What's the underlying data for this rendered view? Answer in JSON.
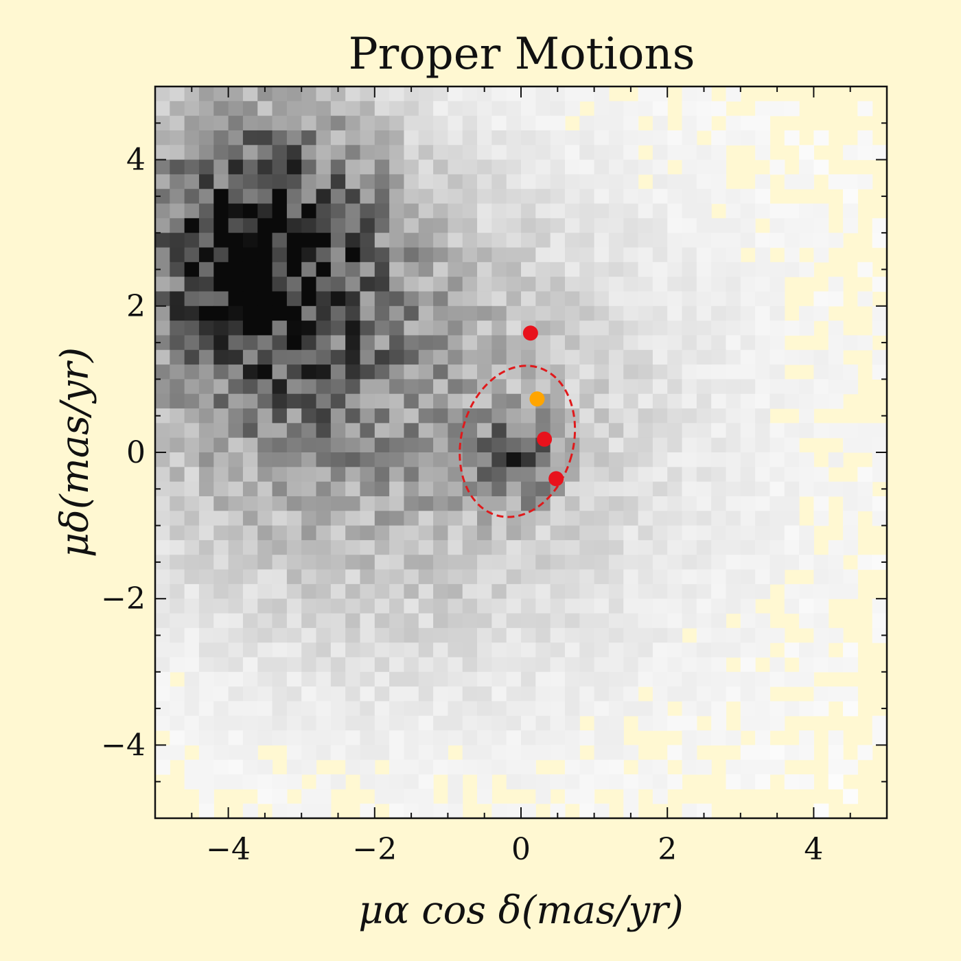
{
  "chart_data": {
    "type": "heatmap",
    "title": "Proper Motions",
    "xlabel": "μα cos δ(mas/yr)",
    "ylabel": "μδ(mas/yr)",
    "xlim": [
      -5,
      5
    ],
    "ylim": [
      -5,
      5
    ],
    "x_ticks": [
      -4,
      -2,
      0,
      2,
      4
    ],
    "y_ticks": [
      -4,
      -2,
      0,
      2,
      4
    ],
    "x_tick_labels": [
      "−4",
      "−2",
      "0",
      "2",
      "4"
    ],
    "y_tick_labels": [
      "−4",
      "−2",
      "0",
      "2",
      "4"
    ],
    "grid": false,
    "colormap": "greys",
    "bins": [
      50,
      50
    ],
    "density_components": [
      {
        "center": [
          -3.6,
          2.8
        ],
        "sigma": [
          1.2,
          1.4
        ],
        "weight": 0.85
      },
      {
        "center": [
          -2.0,
          0.5
        ],
        "sigma": [
          2.2,
          2.0
        ],
        "weight": 0.35
      },
      {
        "center": [
          -0.05,
          -0.1
        ],
        "sigma": [
          0.35,
          0.4
        ],
        "weight": 0.55
      },
      {
        "center": [
          0,
          0
        ],
        "sigma": [
          4.5,
          4.5
        ],
        "weight": 0.06
      }
    ],
    "ellipse": {
      "center": [
        -0.05,
        0.15
      ],
      "semi_axes": [
        0.85,
        1.05
      ],
      "angle_deg": 15,
      "color": "#e0191b",
      "style": "dashed"
    },
    "points": [
      {
        "x": 0.13,
        "y": 1.63,
        "color": "#e8121c"
      },
      {
        "x": 0.22,
        "y": 0.73,
        "color": "#ffa500"
      },
      {
        "x": 0.32,
        "y": 0.18,
        "color": "#e8121c"
      },
      {
        "x": 0.48,
        "y": -0.36,
        "color": "#e8121c"
      }
    ]
  }
}
